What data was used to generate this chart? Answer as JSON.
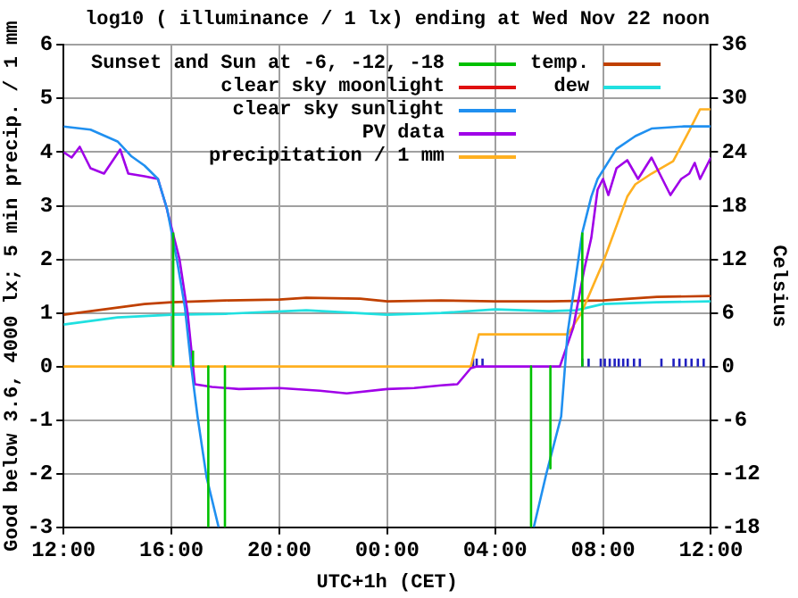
{
  "chart_data": {
    "type": "line",
    "title": "log10 ( illuminance / 1 lx) ending at Wed Nov 22 noon",
    "xlabel": "UTC+1h (CET)",
    "ylabel": "Good below 3.6, 4000 lx; 5 min precip. / 1 mm",
    "y2label": "Celsius",
    "xlim": [
      "--11-21T12:00",
      "--11-22T12:00"
    ],
    "xticks": [
      {
        "value": "--11-21T12:00",
        "label": "12:00"
      },
      {
        "value": "--11-21T16:00",
        "label": "16:00"
      },
      {
        "value": "--11-21T20:00",
        "label": "20:00"
      },
      {
        "value": "--11-22T00:00",
        "label": "00:00"
      },
      {
        "value": "--11-22T04:00",
        "label": "04:00"
      },
      {
        "value": "--11-22T08:00",
        "label": "08:00"
      },
      {
        "value": "--11-22T12:00",
        "label": "12:00"
      }
    ],
    "ylim": [
      -3,
      6
    ],
    "yticks": [
      -3,
      -2,
      -1,
      0,
      1,
      2,
      3,
      4,
      5,
      6
    ],
    "y2lim": [
      -18,
      36
    ],
    "y2ticks": [
      -18,
      -12,
      -6,
      0,
      6,
      12,
      18,
      24,
      30,
      36
    ],
    "grid": true,
    "legend": "top",
    "line_style": "solid",
    "marker": "none",
    "series": [
      {
        "name": "Sunset and Sun at -6, -12, -18",
        "color": "#00c000",
        "x": [
          "--11-21T16:04",
          "--11-21T16:04",
          null,
          "--11-21T16:48",
          "--11-21T16:48",
          null,
          "--11-21T17:22",
          "--11-21T17:22",
          null,
          "--11-21T17:59",
          "--11-21T17:59",
          null,
          "--11-22T05:20",
          "--11-22T05:20",
          null,
          "--11-22T06:03",
          "--11-22T06:03",
          null,
          "--11-22T07:14",
          "--11-22T07:14"
        ],
        "values": [
          0,
          2.5,
          null,
          0,
          0.3,
          null,
          0,
          -3,
          null,
          0,
          -3,
          null,
          0,
          -3,
          null,
          0,
          -1.9,
          null,
          0,
          2.5
        ]
      },
      {
        "name": "clear sky moonlight",
        "color": "#e01010"
      },
      {
        "name": "clear sky sunlight",
        "color": "#2090f0",
        "x": [
          "--11-21T12:00",
          "--11-21T13:00",
          "--11-21T14:00",
          "--11-21T14:30",
          "--11-21T15:00",
          "--11-21T15:30",
          "--11-21T15:50",
          "--11-21T16:12",
          "--11-21T16:30",
          "--11-21T16:44",
          "--11-21T16:58",
          "--11-21T17:18",
          "--11-21T17:45",
          null,
          "--11-22T05:26",
          "--11-22T05:54",
          "--11-22T06:27",
          "--11-22T06:41",
          "--11-22T07:14",
          "--11-22T07:34",
          "--11-22T07:48",
          "--11-22T08:30",
          "--11-22T09:12",
          "--11-22T09:48",
          "--11-22T11:00",
          "--11-22T12:00"
        ],
        "values": [
          4.48,
          4.42,
          4.2,
          3.93,
          3.75,
          3.5,
          2.95,
          2.0,
          1.1,
          0,
          -0.93,
          -2.06,
          -3,
          null,
          -3,
          -2,
          -0.93,
          0.61,
          2.5,
          3.17,
          3.5,
          4.06,
          4.3,
          4.44,
          4.48,
          4.48
        ]
      },
      {
        "name": "PV data",
        "color": "#a000e8",
        "x": [
          "--11-21T12:00",
          "--11-21T12:18",
          "--11-21T12:36",
          "--11-21T13:00",
          "--11-21T13:30",
          "--11-21T13:54",
          "--11-21T14:06",
          "--11-21T14:24",
          "--11-21T15:00",
          "--11-21T15:30",
          "--11-21T15:48",
          "--11-21T16:00",
          "--11-21T16:18",
          "--11-21T16:36",
          "--11-21T16:52",
          "--11-21T17:30",
          "--11-21T18:30",
          "--11-21T20:00",
          "--11-21T21:30",
          "--11-21T22:30",
          "--11-22T00:00",
          "--11-22T01:00",
          "--11-22T02:00",
          "--11-22T02:36",
          "--11-22T03:06",
          "--11-22T03:18",
          "--11-22T06:24",
          "--11-22T06:54",
          "--11-22T07:18",
          "--11-22T07:34",
          "--11-22T07:48",
          "--11-22T08:00",
          "--11-22T08:12",
          "--11-22T08:30",
          "--11-22T08:54",
          "--11-22T09:18",
          "--11-22T09:48",
          "--11-22T10:12",
          "--11-22T10:30",
          "--11-22T10:54",
          "--11-22T11:12",
          "--11-22T11:24",
          "--11-22T11:36",
          "--11-22T12:00"
        ],
        "values": [
          4.0,
          3.9,
          4.1,
          3.7,
          3.6,
          3.9,
          4.05,
          3.6,
          3.55,
          3.5,
          3.0,
          2.6,
          2.0,
          1.0,
          -0.33,
          -0.38,
          -0.42,
          -0.4,
          -0.45,
          -0.5,
          -0.42,
          -0.4,
          -0.35,
          -0.33,
          -0.03,
          0,
          0,
          0.73,
          1.8,
          2.4,
          3.3,
          3.5,
          3.2,
          3.7,
          3.85,
          3.5,
          3.9,
          3.5,
          3.2,
          3.5,
          3.6,
          3.8,
          3.5,
          3.9
        ]
      },
      {
        "name": "precipitation / 1 mm",
        "color": "#ffb020",
        "x": [
          "--11-21T12:00",
          "--11-22T03:06",
          "--11-22T03:24",
          "--11-22T06:42",
          "--11-22T07:12",
          "--11-22T08:00",
          "--11-22T08:54",
          "--11-22T09:12",
          "--11-22T09:48",
          "--11-22T10:36",
          "--11-22T11:12",
          "--11-22T11:36",
          "--11-22T12:00"
        ],
        "values": [
          0,
          0,
          0.6,
          0.6,
          1.0,
          1.94,
          3.17,
          3.4,
          3.6,
          3.83,
          4.4,
          4.8,
          4.8
        ]
      },
      {
        "name": "temp.",
        "color": "#c04000",
        "axis": "y2",
        "x": [
          "--11-21T12:00",
          "--11-21T13:00",
          "--11-21T14:00",
          "--11-21T15:00",
          "--11-21T16:00",
          "--11-21T18:00",
          "--11-21T20:00",
          "--11-21T21:00",
          "--11-21T23:00",
          "--11-22T00:00",
          "--11-22T02:00",
          "--11-22T04:00",
          "--11-22T06:00",
          "--11-22T08:00",
          "--11-22T10:00",
          "--11-22T12:00"
        ],
        "values": [
          5.8,
          6.2,
          6.6,
          7.0,
          7.2,
          7.4,
          7.5,
          7.7,
          7.6,
          7.3,
          7.4,
          7.3,
          7.3,
          7.4,
          7.8,
          7.9
        ]
      },
      {
        "name": "dew",
        "color": "#20e0e0",
        "axis": "y2",
        "x": [
          "--11-21T12:00",
          "--11-21T13:00",
          "--11-21T14:00",
          "--11-21T16:00",
          "--11-21T18:00",
          "--11-21T21:00",
          "--11-22T00:00",
          "--11-22T02:00",
          "--11-22T04:00",
          "--11-22T06:00",
          "--11-22T07:00",
          "--11-22T08:00",
          "--11-22T10:00",
          "--11-22T12:00"
        ],
        "values": [
          4.7,
          5.1,
          5.5,
          5.8,
          5.9,
          6.3,
          5.8,
          6.0,
          6.4,
          6.2,
          6.3,
          7.0,
          7.2,
          7.3
        ]
      },
      {
        "color": "#2020c0",
        "x": [
          "--11-22T03:11",
          "--11-22T03:11",
          null,
          "--11-22T03:19",
          "--11-22T03:19",
          null,
          "--11-22T03:32",
          "--11-22T03:32",
          null,
          "--11-22T07:14",
          "--11-22T07:14",
          null,
          "--11-22T07:28",
          "--11-22T07:28",
          null,
          "--11-22T07:55",
          "--11-22T07:55",
          null,
          "--11-22T08:04",
          "--11-22T08:04",
          null,
          "--11-22T08:15",
          "--11-22T08:15",
          null,
          "--11-22T08:26",
          "--11-22T08:26",
          null,
          "--11-22T08:35",
          "--11-22T08:35",
          null,
          "--11-22T08:45",
          "--11-22T08:45",
          null,
          "--11-22T08:55",
          "--11-22T08:55",
          null,
          "--11-22T09:09",
          "--11-22T09:09",
          null,
          "--11-22T09:22",
          "--11-22T09:22",
          null,
          "--11-22T10:10",
          "--11-22T10:10",
          null,
          "--11-22T10:37",
          "--11-22T10:37",
          null,
          "--11-22T10:50",
          "--11-22T10:50",
          null,
          "--11-22T11:04",
          "--11-22T11:04",
          null,
          "--11-22T11:17",
          "--11-22T11:17",
          null,
          "--11-22T11:31",
          "--11-22T11:31",
          null,
          "--11-22T11:44",
          "--11-22T11:44"
        ],
        "values": [
          0,
          0.15,
          null,
          0,
          0.15,
          null,
          0,
          0.15,
          null,
          0,
          0.15,
          null,
          0,
          0.15,
          null,
          0,
          0.15,
          null,
          0,
          0.15,
          null,
          0,
          0.15,
          null,
          0,
          0.15,
          null,
          0,
          0.15,
          null,
          0,
          0.15,
          null,
          0,
          0.15,
          null,
          0,
          0.15,
          null,
          0,
          0.15,
          null,
          0,
          0.15,
          null,
          0,
          0.15,
          null,
          0,
          0.15,
          null,
          0,
          0.15,
          null,
          0,
          0.15,
          null,
          0,
          0.15,
          null,
          0,
          0.15
        ]
      }
    ]
  }
}
